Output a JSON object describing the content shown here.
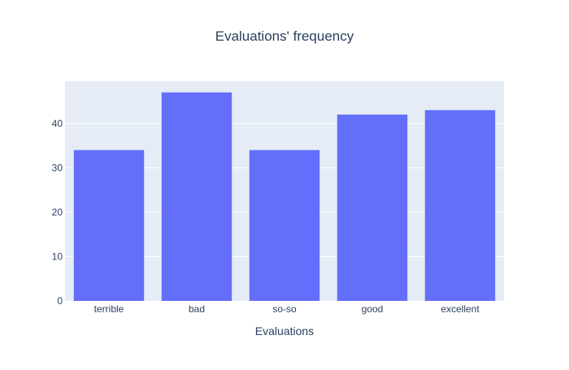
{
  "chart_data": {
    "type": "bar",
    "title": "Evaluations' frequency",
    "xlabel": "Evaluations",
    "ylabel": "",
    "categories": [
      "terrible",
      "bad",
      "so-so",
      "good",
      "excellent"
    ],
    "values": [
      34,
      47,
      34,
      42,
      43
    ],
    "ylim": [
      0,
      49.5
    ],
    "yticks": [
      0,
      10,
      20,
      30,
      40
    ],
    "grid": true,
    "colors": {
      "bar": "#636efa",
      "plot_bg": "#e5ecf6",
      "grid": "#ffffff",
      "text": "#2a3f5f"
    }
  }
}
